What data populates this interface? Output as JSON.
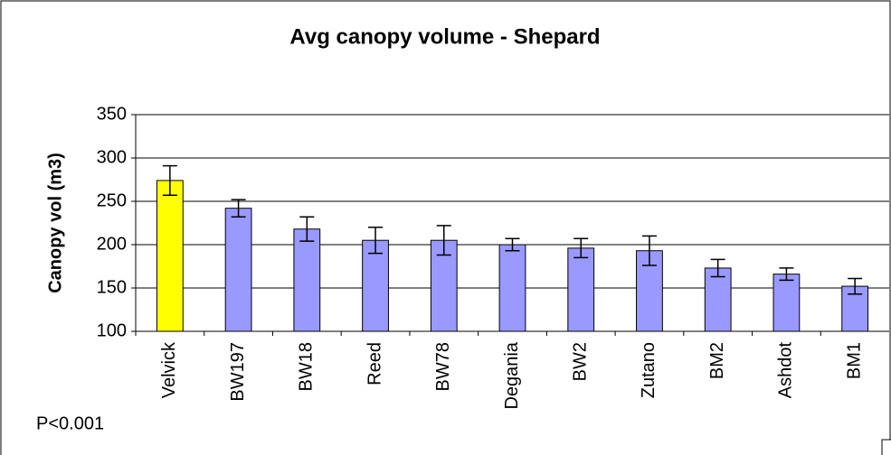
{
  "chart_data": {
    "type": "bar",
    "title": "Avg canopy volume - Shepard",
    "y_label": "Canopy vol (m3)",
    "annotation": "P<0.001",
    "categories": [
      "Velvick",
      "BW197",
      "BW18",
      "Reed",
      "BW78",
      "Degania",
      "BW2",
      "Zutano",
      "BM2",
      "Ashdot",
      "BM1"
    ],
    "values": [
      274,
      242,
      218,
      205,
      205,
      200,
      196,
      193,
      173,
      166,
      152
    ],
    "errors": [
      17,
      10,
      14,
      15,
      17,
      7,
      11,
      17,
      10,
      7,
      9
    ],
    "colors": [
      "#ffff00",
      "#9999ff",
      "#9999ff",
      "#9999ff",
      "#9999ff",
      "#9999ff",
      "#9999ff",
      "#9999ff",
      "#9999ff",
      "#9999ff",
      "#9999ff"
    ],
    "ylim": [
      100,
      350
    ],
    "yticks": [
      100,
      150,
      200,
      250,
      300,
      350
    ],
    "grid": true
  }
}
